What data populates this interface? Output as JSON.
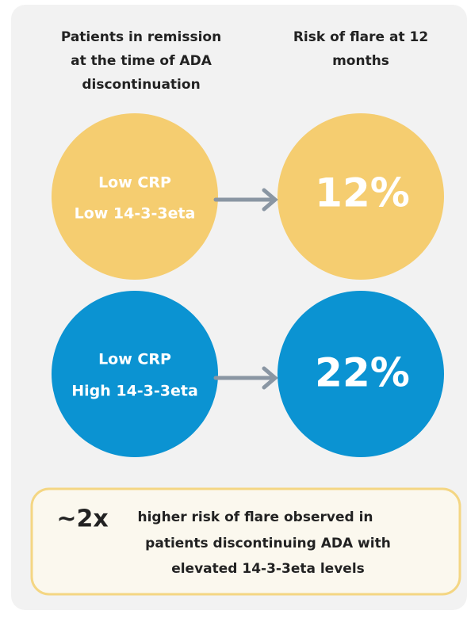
{
  "headers": {
    "left": [
      "Patients in remission",
      "at the time of ADA",
      "discontinuation"
    ],
    "right": [
      "Risk of flare at 12",
      "months"
    ]
  },
  "rows": [
    {
      "label": [
        "Low CRP",
        "Low 14-3-3eta"
      ],
      "risk": "12%"
    },
    {
      "label": [
        "Low CRP",
        "High 14-3-3eta"
      ],
      "risk": "22%"
    }
  ],
  "footer": {
    "emphasis": "~2x",
    "lines": [
      "higher risk of flare observed in",
      "patients discontinuing ADA with",
      "elevated 14-3-3eta levels"
    ]
  }
}
